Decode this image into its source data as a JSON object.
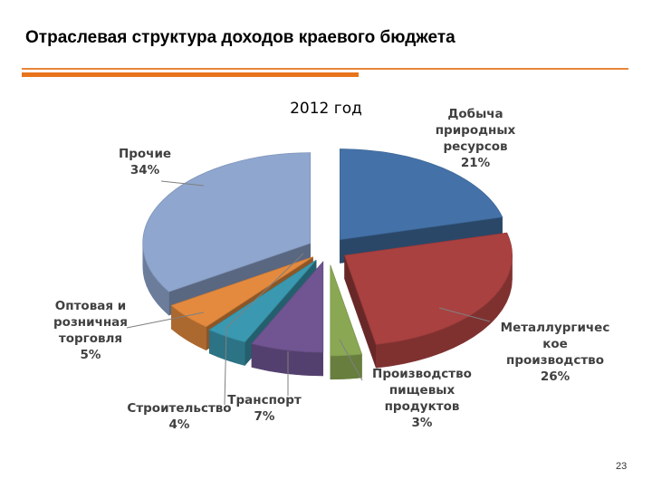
{
  "slide": {
    "title": "Отраслевая структура доходов краевого бюджета",
    "page_number": "23"
  },
  "colors": {
    "accent_line": "#e8741c"
  },
  "chart_data": {
    "type": "pie",
    "style": "3d-exploded",
    "title": "2012 год",
    "slices": [
      {
        "name": "Добыча природных ресурсов",
        "label_lines": [
          "Добыча",
          "природных",
          "ресурсов"
        ],
        "value": 21,
        "value_label": "21%",
        "color": "#4472a8"
      },
      {
        "name": "Металлургическое производство",
        "label_lines": [
          "Металлургичес",
          "кое",
          "производство"
        ],
        "value": 26,
        "value_label": "26%",
        "color": "#a94140"
      },
      {
        "name": "Производство пищевых продуктов",
        "label_lines": [
          "Производство",
          "пищевых",
          "продуктов"
        ],
        "value": 3,
        "value_label": "3%",
        "color": "#8aa853"
      },
      {
        "name": "Транспорт",
        "label_lines": [
          "Транспорт"
        ],
        "value": 7,
        "value_label": "7%",
        "color": "#705592"
      },
      {
        "name": "Строительство",
        "label_lines": [
          "Строительство"
        ],
        "value": 4,
        "value_label": "4%",
        "color": "#3a99b1"
      },
      {
        "name": "Оптовая и розничная торговля",
        "label_lines": [
          "Оптовая и",
          "розничная",
          "торговля"
        ],
        "value": 5,
        "value_label": "5%",
        "color": "#e48a3e"
      },
      {
        "name": "Прочие",
        "label_lines": [
          "Прочие"
        ],
        "value": 34,
        "value_label": "34%",
        "color": "#8fa6cf"
      }
    ]
  }
}
